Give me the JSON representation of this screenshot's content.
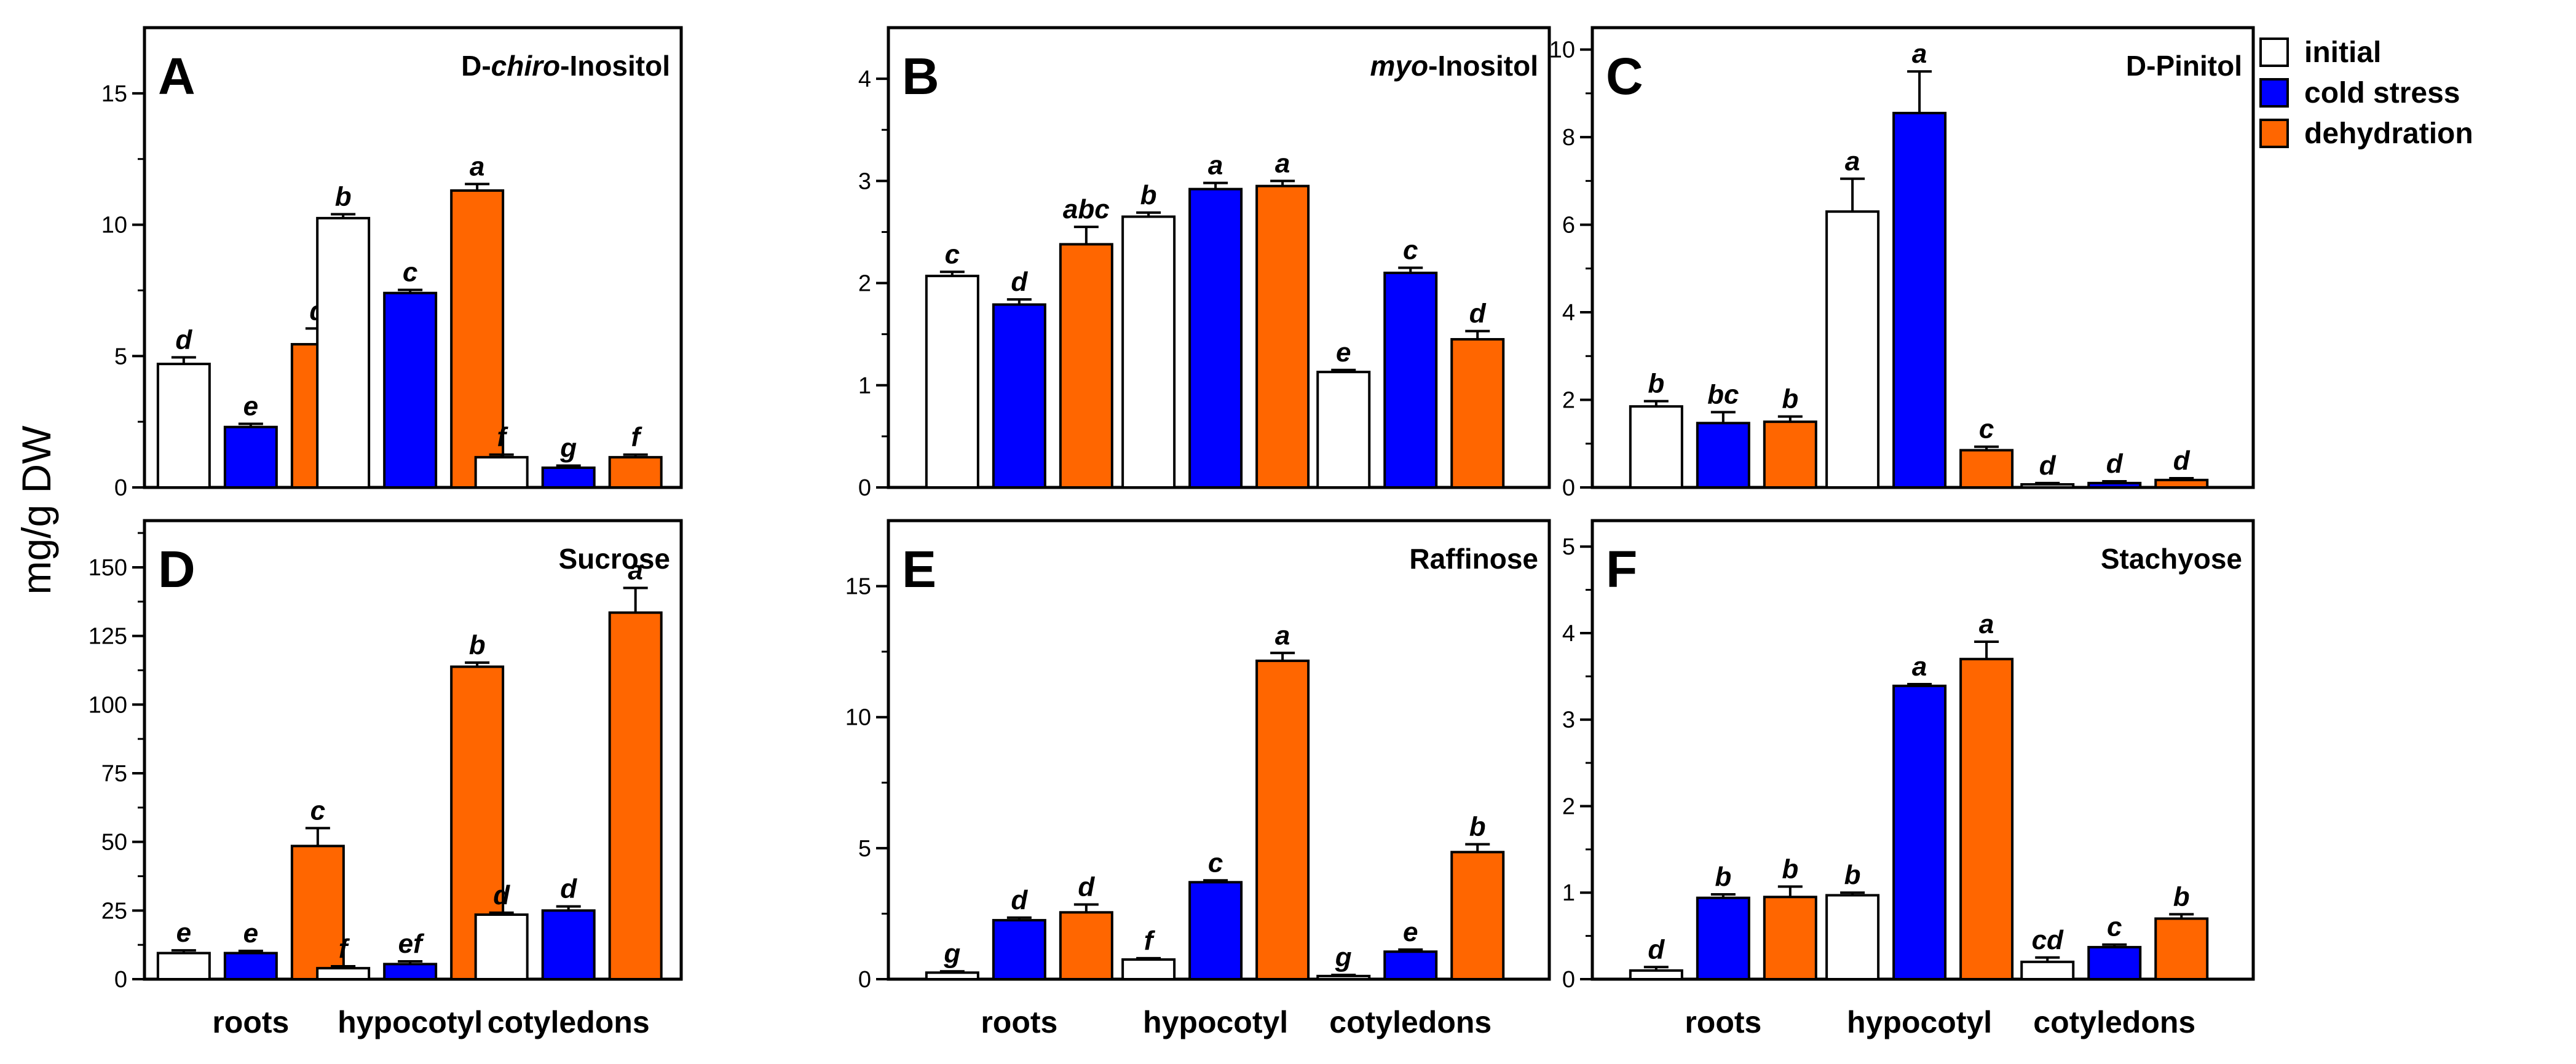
{
  "chart_data": {
    "type": "bar",
    "ylabel": "mg/g DW",
    "categories": [
      "roots",
      "hypocotyl",
      "cotyledons"
    ],
    "legend": [
      {
        "name": "initial",
        "color": "#ffffff"
      },
      {
        "name": "cold stress",
        "color": "#0000ff"
      },
      {
        "name": "dehydration",
        "color": "#ff6600"
      }
    ],
    "panels": [
      {
        "letter": "A",
        "title": {
          "prefix": "D-",
          "italic": "chiro",
          "suffix": "-Inositol"
        },
        "ylim": [
          0,
          17.5
        ],
        "yticks": [
          0,
          5,
          10,
          15
        ],
        "show_categories": false,
        "series": [
          {
            "name": "initial",
            "values": [
              4.7,
              10.25,
              1.15
            ],
            "errors": [
              0.25,
              0.15,
              0.1
            ],
            "labels": [
              "d",
              "b",
              "f"
            ]
          },
          {
            "name": "cold stress",
            "values": [
              2.3,
              7.4,
              0.75
            ],
            "errors": [
              0.12,
              0.12,
              0.08
            ],
            "labels": [
              "e",
              "c",
              "g"
            ]
          },
          {
            "name": "dehydration",
            "values": [
              5.45,
              11.3,
              1.15
            ],
            "errors": [
              0.6,
              0.25,
              0.1
            ],
            "labels": [
              "d",
              "a",
              "f"
            ]
          }
        ]
      },
      {
        "letter": "B",
        "title": {
          "prefix": "",
          "italic": "myo",
          "suffix": "-Inositol"
        },
        "ylim": [
          0,
          4.5
        ],
        "yticks": [
          0,
          1,
          2,
          3,
          4
        ],
        "show_categories": false,
        "series": [
          {
            "name": "initial",
            "values": [
              2.07,
              2.65,
              1.13
            ],
            "errors": [
              0.04,
              0.04,
              0.02
            ],
            "labels": [
              "c",
              "b",
              "e"
            ]
          },
          {
            "name": "cold stress",
            "values": [
              1.79,
              2.92,
              2.1
            ],
            "errors": [
              0.05,
              0.06,
              0.05
            ],
            "labels": [
              "d",
              "a",
              "c"
            ]
          },
          {
            "name": "dehydration",
            "values": [
              2.38,
              2.95,
              1.45
            ],
            "errors": [
              0.17,
              0.05,
              0.08
            ],
            "labels": [
              "abc",
              "a",
              "d"
            ]
          }
        ]
      },
      {
        "letter": "C",
        "title": {
          "prefix": "D-",
          "italic": "",
          "suffix": "Pinitol"
        },
        "ylim": [
          0,
          10.5
        ],
        "yticks": [
          0,
          2,
          4,
          6,
          8,
          10
        ],
        "show_categories": false,
        "series": [
          {
            "name": "initial",
            "values": [
              1.85,
              6.3,
              0.07
            ],
            "errors": [
              0.12,
              0.75,
              0.03
            ],
            "labels": [
              "b",
              "a",
              "d"
            ]
          },
          {
            "name": "cold stress",
            "values": [
              1.47,
              8.55,
              0.1
            ],
            "errors": [
              0.25,
              0.95,
              0.04
            ],
            "labels": [
              "bc",
              "a",
              "d"
            ]
          },
          {
            "name": "dehydration",
            "values": [
              1.5,
              0.85,
              0.17
            ],
            "errors": [
              0.12,
              0.08,
              0.04
            ],
            "labels": [
              "b",
              "c",
              "d"
            ]
          }
        ]
      },
      {
        "letter": "D",
        "title": {
          "prefix": "",
          "italic": "",
          "suffix": "Sucrose"
        },
        "ylim": [
          0,
          167
        ],
        "yticks": [
          0,
          25,
          50,
          75,
          100,
          125,
          150
        ],
        "show_categories": true,
        "series": [
          {
            "name": "initial",
            "values": [
              9.5,
              4.0,
              23.5
            ],
            "errors": [
              1.0,
              0.7,
              0.7
            ],
            "labels": [
              "e",
              "f",
              "d"
            ]
          },
          {
            "name": "cold stress",
            "values": [
              9.5,
              5.5,
              25.0
            ],
            "errors": [
              0.8,
              1.0,
              1.5
            ],
            "labels": [
              "e",
              "ef",
              "d"
            ]
          },
          {
            "name": "dehydration",
            "values": [
              48.5,
              113.8,
              133.5
            ],
            "errors": [
              6.5,
              1.5,
              9.0
            ],
            "labels": [
              "c",
              "b",
              "a"
            ]
          }
        ]
      },
      {
        "letter": "E",
        "title": {
          "prefix": "",
          "italic": "",
          "suffix": "Raffinose"
        },
        "ylim": [
          0,
          17.5
        ],
        "yticks": [
          0,
          5,
          10,
          15
        ],
        "show_categories": true,
        "series": [
          {
            "name": "initial",
            "values": [
              0.25,
              0.75,
              0.12
            ],
            "errors": [
              0.05,
              0.05,
              0.04
            ],
            "labels": [
              "g",
              "f",
              "g"
            ]
          },
          {
            "name": "cold stress",
            "values": [
              2.25,
              3.7,
              1.05
            ],
            "errors": [
              0.1,
              0.07,
              0.08
            ],
            "labels": [
              "d",
              "c",
              "e"
            ]
          },
          {
            "name": "dehydration",
            "values": [
              2.55,
              12.15,
              4.85
            ],
            "errors": [
              0.3,
              0.3,
              0.3
            ],
            "labels": [
              "d",
              "a",
              "b"
            ]
          }
        ]
      },
      {
        "letter": "F",
        "title": {
          "prefix": "",
          "italic": "",
          "suffix": "Stachyose"
        },
        "ylim": [
          0,
          5.3
        ],
        "yticks": [
          0,
          1,
          2,
          3,
          4,
          5
        ],
        "show_categories": true,
        "series": [
          {
            "name": "initial",
            "values": [
              0.1,
              0.97,
              0.2
            ],
            "errors": [
              0.04,
              0.03,
              0.05
            ],
            "labels": [
              "d",
              "b",
              "cd"
            ]
          },
          {
            "name": "cold stress",
            "values": [
              0.94,
              3.39,
              0.37
            ],
            "errors": [
              0.04,
              0.02,
              0.03
            ],
            "labels": [
              "b",
              "a",
              "c"
            ]
          },
          {
            "name": "dehydration",
            "values": [
              0.95,
              3.7,
              0.7
            ],
            "errors": [
              0.12,
              0.2,
              0.05
            ],
            "labels": [
              "b",
              "a",
              "b"
            ]
          }
        ]
      }
    ]
  }
}
